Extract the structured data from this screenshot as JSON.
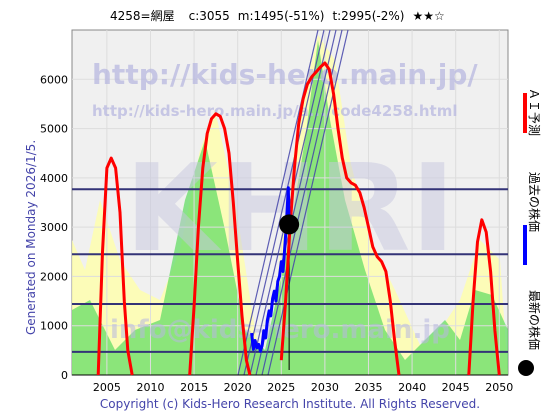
{
  "header": {
    "code_name": "4258=網屋",
    "current": "c:3055",
    "min": "m:1495(-51%)",
    "target": "t:2995(-2%)",
    "stars": "★★☆"
  },
  "left_caption": "Generated on Monday 2026/1/5.",
  "footer": "Copyright (c) Kids-Hero Research Institute. All Rights Reserved.",
  "watermarks": {
    "url_big": "http://kids-hero.main.jp/",
    "url_small": "http://kids-hero.main.jp/a.../code4258.html",
    "logo": "KHRI",
    "email": "info@kids-hero.main.jp"
  },
  "legend": [
    {
      "label": "ＡＩ予測",
      "color": "#ff0000"
    },
    {
      "label": "過去の株価",
      "color": "#0000ff"
    },
    {
      "label": "最新の株価",
      "color": "#000000"
    }
  ],
  "colors": {
    "plot_bg": "#f0f0f0",
    "ai_line": "#ff0000",
    "past_price": "#0000ff",
    "latest_marker": "#000000",
    "h_lines": "#333377",
    "green_fill": "#66dd66",
    "yellow_fill": "#ffffaa",
    "channel_lines": "#4444aa"
  },
  "chart_data": {
    "type": "line",
    "xlim": [
      2001,
      2051
    ],
    "ylim": [
      0,
      7000
    ],
    "x_ticks": [
      2005,
      2010,
      2015,
      2020,
      2025,
      2030,
      2035,
      2040,
      2045,
      2050
    ],
    "y_ticks": [
      0,
      1000,
      2000,
      3000,
      4000,
      5000,
      6000
    ],
    "grid": true,
    "horizontal_levels": [
      3770,
      2450,
      1440,
      470
    ],
    "latest": {
      "x": 2025.9,
      "y": 3055
    },
    "series": [
      {
        "key": "ai",
        "x": [
          2004,
          2004.5,
          2005,
          2005.5,
          2006,
          2006.5,
          2007,
          2007.4,
          2007.9
        ],
        "y": [
          0,
          2500,
          4200,
          4400,
          4200,
          3300,
          1500,
          500,
          0
        ]
      },
      {
        "key": "ai",
        "x": [
          2014.5,
          2015,
          2015.5,
          2016,
          2016.5,
          2017,
          2017.5,
          2018,
          2018.5,
          2019,
          2019.5,
          2020,
          2020.5,
          2021,
          2021.4
        ],
        "y": [
          0,
          1400,
          3000,
          4200,
          4900,
          5200,
          5300,
          5250,
          5000,
          4500,
          3500,
          2300,
          1200,
          300,
          0
        ]
      },
      {
        "key": "ai",
        "x": [
          2025,
          2025.5,
          2026,
          2026.5,
          2027,
          2027.5,
          2028,
          2028.5,
          2029,
          2029.5,
          2030,
          2030.5,
          2031,
          2031.5,
          2032,
          2032.5,
          2033,
          2033.5,
          2034,
          2034.5,
          2035,
          2035.5,
          2036,
          2036.5,
          2037,
          2037.5,
          2038,
          2038.5
        ],
        "y": [
          300,
          1500,
          3000,
          4200,
          5100,
          5600,
          5900,
          6050,
          6150,
          6250,
          6330,
          6200,
          5700,
          5000,
          4400,
          4000,
          3900,
          3850,
          3700,
          3400,
          3000,
          2600,
          2400,
          2300,
          2100,
          1500,
          700,
          0
        ]
      },
      {
        "key": "ai",
        "x": [
          2046.5,
          2047,
          2047.5,
          2048,
          2048.5,
          2049,
          2049.5,
          2050
        ],
        "y": [
          0,
          1500,
          2700,
          3150,
          2900,
          2100,
          900,
          0
        ]
      },
      {
        "key": "past",
        "x": [
          2021.6,
          2021.8,
          2022.0,
          2022.2,
          2022.4,
          2022.6,
          2022.8,
          2023.0,
          2023.2,
          2023.4,
          2023.6,
          2023.8,
          2024.0,
          2024.2,
          2024.4,
          2024.6,
          2024.8,
          2025.0,
          2025.2,
          2025.4,
          2025.6,
          2025.8,
          2025.9
        ],
        "y": [
          850,
          520,
          700,
          550,
          620,
          480,
          600,
          900,
          750,
          1100,
          1300,
          1200,
          1550,
          1700,
          1500,
          1900,
          2000,
          2300,
          2100,
          2600,
          3100,
          3800,
          3055
        ]
      }
    ]
  }
}
